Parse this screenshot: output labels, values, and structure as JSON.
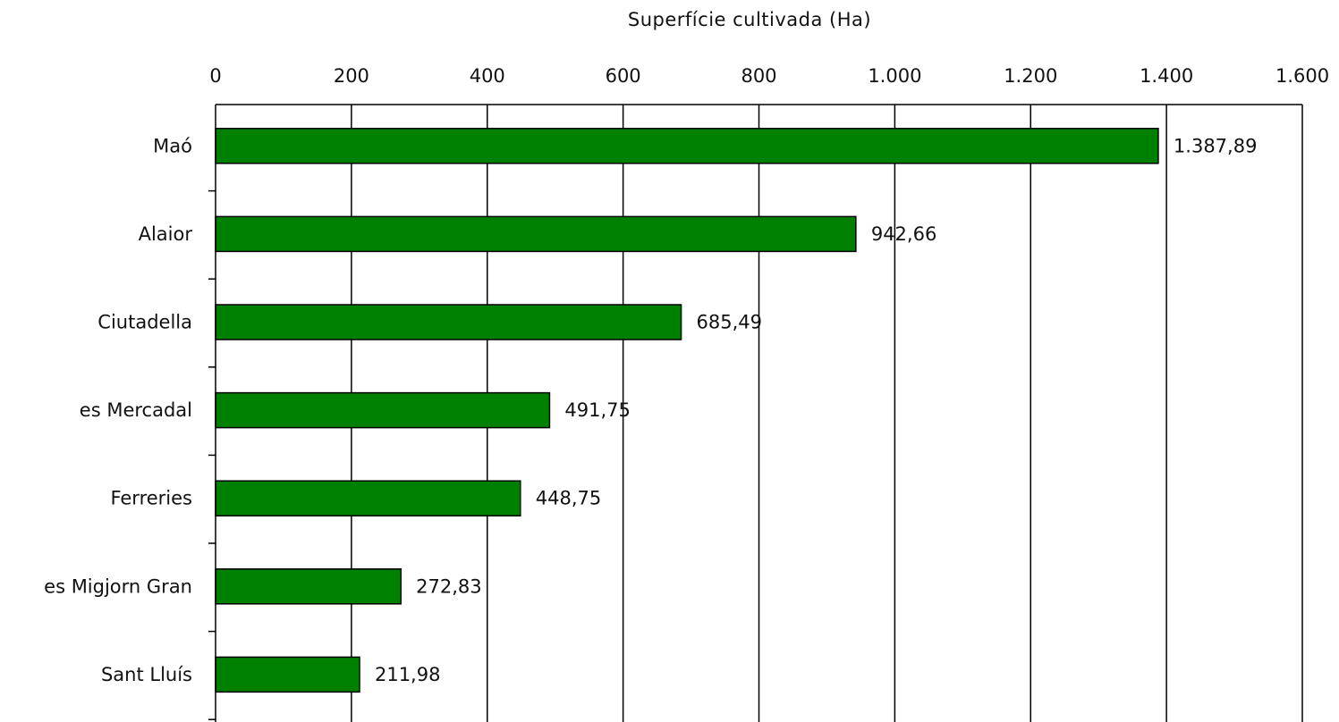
{
  "chart_data": {
    "type": "bar",
    "orientation": "horizontal",
    "title": "",
    "xlabel": "Superfície cultivada (Ha)",
    "ylabel": "",
    "xlabel_position": "top",
    "categories": [
      "Maó",
      "Alaior",
      "Ciutadella",
      "es Mercadal",
      "Ferreries",
      "es Migjorn Gran",
      "Sant Lluís"
    ],
    "values": [
      1387.89,
      942.66,
      685.49,
      491.75,
      448.75,
      272.83,
      211.98
    ],
    "data_labels": [
      "1.387,89",
      "942,66",
      "685,49",
      "491,75",
      "448,75",
      "272,83",
      "211,98"
    ],
    "xlim": [
      0,
      1600
    ],
    "x_ticks": [
      0,
      200,
      400,
      600,
      800,
      1000,
      1200,
      1400,
      1600
    ],
    "x_tick_labels": [
      "0",
      "200",
      "400",
      "600",
      "800",
      "1.000",
      "1.200",
      "1.400",
      "1.600"
    ],
    "grid": "vertical",
    "legend": "none",
    "bar_color": "#008000",
    "bar_edge_color": "#000000"
  }
}
